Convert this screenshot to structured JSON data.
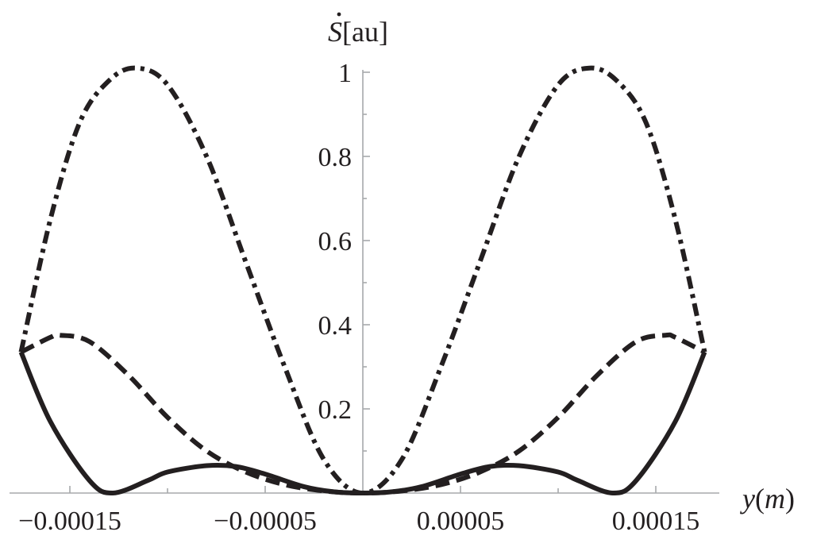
{
  "chart_data": {
    "type": "line",
    "title": "",
    "xlabel_var": "y",
    "xlabel_unit": "m",
    "ylabel_var": "S",
    "ylabel_unit": "[au]",
    "xlim": [
      -0.000185,
      0.000185
    ],
    "ylim": [
      0,
      1.03
    ],
    "grid": false,
    "x_ticks": [
      {
        "value": -0.00015,
        "label": "−0.00015"
      },
      {
        "value": -5e-05,
        "label": "−0.00005"
      },
      {
        "value": 5e-05,
        "label": "0.00005"
      },
      {
        "value": 0.00015,
        "label": "0.00015"
      }
    ],
    "x_minor_ticks": [
      -0.0001,
      0.0001
    ],
    "y_ticks": [
      {
        "value": 0.2,
        "label": "0.2"
      },
      {
        "value": 0.4,
        "label": "0.4"
      },
      {
        "value": 0.6,
        "label": "0.6"
      },
      {
        "value": 0.8,
        "label": "0.8"
      },
      {
        "value": 1.0,
        "label": "1"
      }
    ],
    "series": [
      {
        "style": "solid",
        "x": [
          -0.000175,
          -0.00016,
          -0.00014,
          -0.000128,
          -0.00011,
          -0.0001,
          -8e-05,
          -6.5e-05,
          -5e-05,
          -3e-05,
          -1.5e-05,
          0,
          1.5e-05,
          3e-05,
          5e-05,
          6.5e-05,
          8e-05,
          0.0001,
          0.00011,
          0.000128,
          0.00014,
          0.00016,
          0.000175
        ],
        "y": [
          0.335,
          0.17,
          0.03,
          0.0,
          0.03,
          0.05,
          0.065,
          0.063,
          0.045,
          0.015,
          0.003,
          0.0,
          0.003,
          0.015,
          0.045,
          0.063,
          0.065,
          0.05,
          0.03,
          0.0,
          0.03,
          0.17,
          0.335
        ]
      },
      {
        "style": "dashed",
        "x": [
          -0.000175,
          -0.00016,
          -0.000155,
          -0.00014,
          -0.00012,
          -0.0001,
          -8e-05,
          -6e-05,
          -4e-05,
          -2e-05,
          0,
          2e-05,
          4e-05,
          6e-05,
          8e-05,
          0.0001,
          0.00012,
          0.00014,
          0.000155,
          0.00016,
          0.000175
        ],
        "y": [
          0.335,
          0.37,
          0.375,
          0.36,
          0.28,
          0.18,
          0.1,
          0.05,
          0.02,
          0.005,
          0.0,
          0.005,
          0.02,
          0.05,
          0.1,
          0.18,
          0.28,
          0.36,
          0.375,
          0.37,
          0.335
        ]
      },
      {
        "style": "dashdot",
        "x": [
          -0.000175,
          -0.00016,
          -0.000145,
          -0.00013,
          -0.000116,
          -0.0001,
          -8e-05,
          -6e-05,
          -4e-05,
          -2e-05,
          0,
          2e-05,
          4e-05,
          6e-05,
          8e-05,
          0.0001,
          0.000116,
          0.00013,
          0.000145,
          0.00016,
          0.000175
        ],
        "y": [
          0.335,
          0.65,
          0.88,
          0.98,
          1.01,
          0.97,
          0.8,
          0.55,
          0.3,
          0.08,
          0.0,
          0.08,
          0.3,
          0.55,
          0.8,
          0.97,
          1.01,
          0.98,
          0.88,
          0.65,
          0.335
        ]
      }
    ]
  }
}
